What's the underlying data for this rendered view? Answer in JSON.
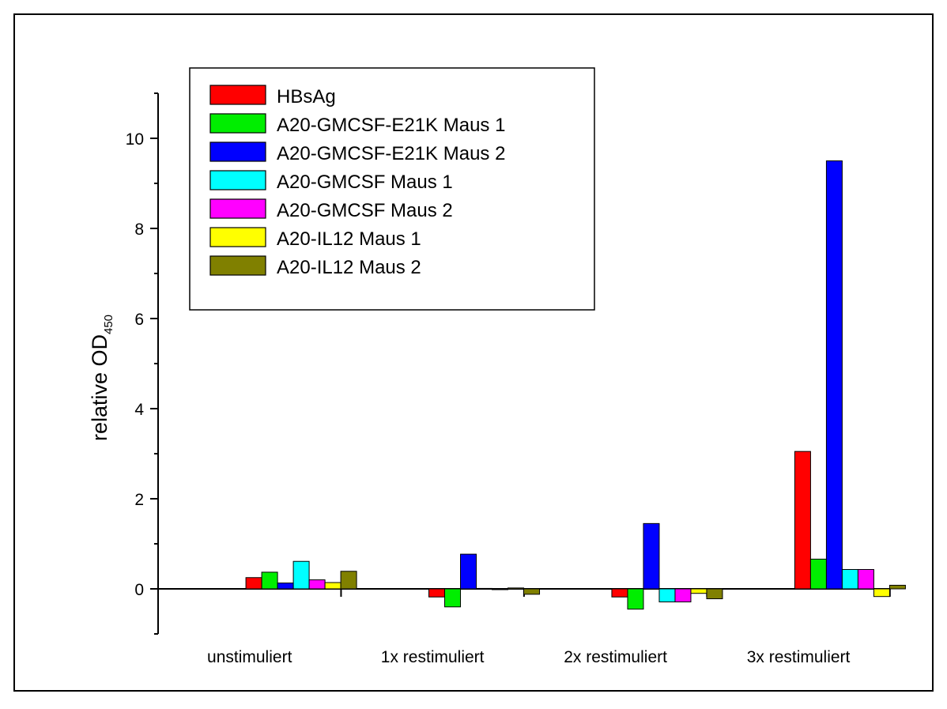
{
  "chart_data": {
    "type": "bar",
    "categories": [
      "unstimuliert",
      "1x restimuliert",
      "2x restimuliert",
      "3x restimuliert"
    ],
    "ylabel": "relative OD",
    "ylabel_subscript": "450",
    "ylim": [
      -1,
      11
    ],
    "yticks": [
      0,
      2,
      4,
      6,
      8,
      10
    ],
    "legend_position": "top-left",
    "series": [
      {
        "name": "HBsAg",
        "color": "#ff0000",
        "values": [
          0.25,
          -0.18,
          -0.18,
          3.05
        ]
      },
      {
        "name": "A20-GMCSF-E21K Maus 1",
        "color": "#00ee00",
        "values": [
          0.37,
          -0.4,
          -0.45,
          0.66
        ]
      },
      {
        "name": "A20-GMCSF-E21K Maus 2",
        "color": "#0000ff",
        "values": [
          0.13,
          0.77,
          1.45,
          9.5
        ]
      },
      {
        "name": "A20-GMCSF Maus 1",
        "color": "#00ffff",
        "values": [
          0.61,
          0.01,
          -0.29,
          0.43
        ]
      },
      {
        "name": "A20-GMCSF Maus 2",
        "color": "#ff00ff",
        "values": [
          0.2,
          0.0,
          -0.29,
          0.43
        ]
      },
      {
        "name": "A20-IL12 Maus 1",
        "color": "#ffff00",
        "values": [
          0.14,
          0.02,
          -0.1,
          -0.17
        ]
      },
      {
        "name": "A20-IL12 Maus 2",
        "color": "#808000",
        "values": [
          0.39,
          -0.12,
          -0.22,
          0.08
        ]
      }
    ]
  }
}
